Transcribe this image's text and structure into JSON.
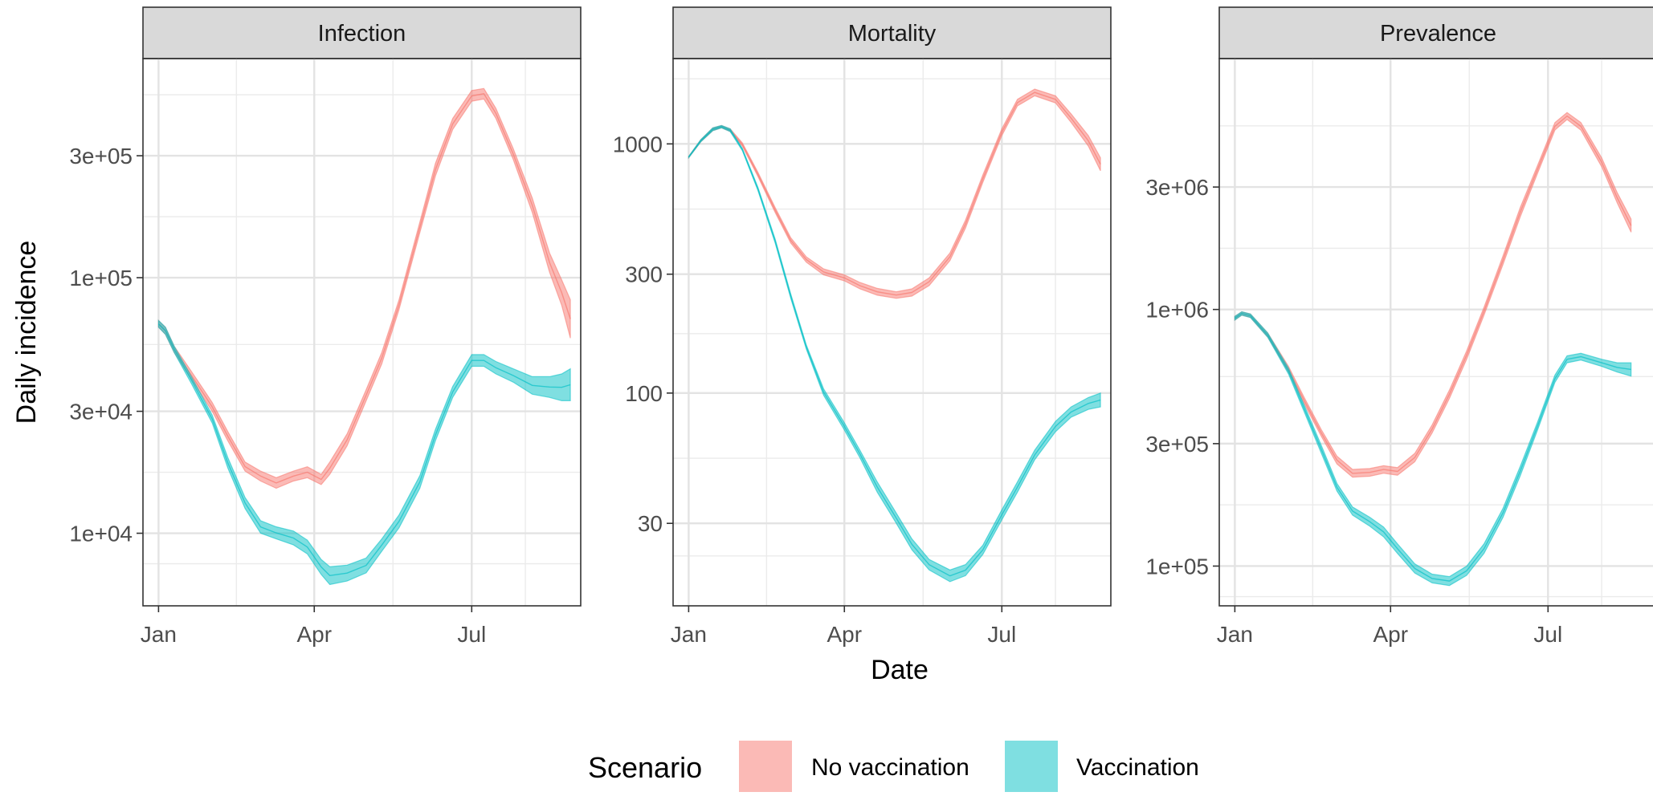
{
  "chart_data": {
    "type": "area",
    "ylabel": "Daily incidence",
    "xlabel": "Date",
    "y_scale": "log10",
    "grid": true,
    "x_ticks": [
      "Jan",
      "Apr",
      "Jul"
    ],
    "legend": {
      "title": "Scenario",
      "position": "bottom",
      "entries": [
        {
          "name": "No vaccination",
          "color": "#F8766D"
        },
        {
          "name": "Vaccination",
          "color": "#00BFC4"
        }
      ]
    },
    "panels": [
      {
        "title": "Infection",
        "ylim": [
          5200,
          720000
        ],
        "y_ticks": [
          10000,
          30000,
          100000,
          300000
        ],
        "y_tick_labels": [
          "1e+04",
          "3e+04",
          "1e+05",
          "3e+05"
        ],
        "series": [
          {
            "name": "No vaccination",
            "points": [
              [
                "2021-01-01",
                64000,
                68000
              ],
              [
                "2021-01-05",
                60000,
                64000
              ],
              [
                "2021-01-10",
                51000,
                54000
              ],
              [
                "2021-01-20",
                40000,
                43000
              ],
              [
                "2021-02-01",
                30000,
                32500
              ],
              [
                "2021-02-10",
                23000,
                25000
              ],
              [
                "2021-02-20",
                17500,
                19000
              ],
              [
                "2021-03-01",
                16000,
                17500
              ],
              [
                "2021-03-10",
                15000,
                16500
              ],
              [
                "2021-03-20",
                16000,
                17500
              ],
              [
                "2021-03-28",
                16500,
                18200
              ],
              [
                "2021-04-05",
                15500,
                17000
              ],
              [
                "2021-04-10",
                17000,
                19000
              ],
              [
                "2021-04-20",
                22000,
                24500
              ],
              [
                "2021-05-01",
                33000,
                36500
              ],
              [
                "2021-05-10",
                46000,
                51000
              ],
              [
                "2021-05-20",
                75000,
                82000
              ],
              [
                "2021-06-01",
                150000,
                165000
              ],
              [
                "2021-06-10",
                250000,
                280000
              ],
              [
                "2021-06-20",
                380000,
                420000
              ],
              [
                "2021-07-01",
                490000,
                540000
              ],
              [
                "2021-07-08",
                500000,
                550000
              ],
              [
                "2021-07-15",
                420000,
                460000
              ],
              [
                "2021-07-25",
                290000,
                320000
              ],
              [
                "2021-08-05",
                180000,
                205000
              ],
              [
                "2021-08-15",
                105000,
                125000
              ],
              [
                "2021-08-22",
                78000,
                98000
              ],
              [
                "2021-08-27",
                58000,
                82000
              ]
            ]
          },
          {
            "name": "Vaccination",
            "points": [
              [
                "2021-01-01",
                64000,
                68000
              ],
              [
                "2021-01-05",
                60000,
                64000
              ],
              [
                "2021-01-10",
                51000,
                54000
              ],
              [
                "2021-01-20",
                38500,
                41000
              ],
              [
                "2021-02-01",
                27000,
                29000
              ],
              [
                "2021-02-10",
                18000,
                19800
              ],
              [
                "2021-02-20",
                12500,
                13800
              ],
              [
                "2021-03-01",
                10000,
                11200
              ],
              [
                "2021-03-10",
                9500,
                10600
              ],
              [
                "2021-03-20",
                9000,
                10200
              ],
              [
                "2021-03-28",
                8300,
                9400
              ],
              [
                "2021-04-05",
                6900,
                7900
              ],
              [
                "2021-04-10",
                6300,
                7400
              ],
              [
                "2021-04-20",
                6500,
                7500
              ],
              [
                "2021-05-01",
                7000,
                8000
              ],
              [
                "2021-05-10",
                8500,
                9500
              ],
              [
                "2021-05-20",
                10500,
                11800
              ],
              [
                "2021-06-01",
                15000,
                16800
              ],
              [
                "2021-06-10",
                23000,
                25500
              ],
              [
                "2021-06-20",
                34000,
                37500
              ],
              [
                "2021-07-01",
                45000,
                50000
              ],
              [
                "2021-07-08",
                45000,
                50000
              ],
              [
                "2021-07-15",
                42000,
                47000
              ],
              [
                "2021-07-25",
                39000,
                44000
              ],
              [
                "2021-08-05",
                35000,
                41000
              ],
              [
                "2021-08-15",
                34000,
                41000
              ],
              [
                "2021-08-22",
                33000,
                42000
              ],
              [
                "2021-08-27",
                33000,
                44000
              ]
            ]
          }
        ]
      },
      {
        "title": "Mortality",
        "ylim": [
          14,
          2200
        ],
        "y_ticks": [
          30,
          100,
          300,
          1000
        ],
        "y_tick_labels": [
          "30",
          "100",
          "300",
          "1000"
        ],
        "series": [
          {
            "name": "No vaccination",
            "points": [
              [
                "2021-01-01",
                880,
                890
              ],
              [
                "2021-01-08",
                1020,
                1040
              ],
              [
                "2021-01-15",
                1130,
                1160
              ],
              [
                "2021-01-20",
                1160,
                1185
              ],
              [
                "2021-01-25",
                1120,
                1150
              ],
              [
                "2021-02-01",
                980,
                1010
              ],
              [
                "2021-02-10",
                740,
                770
              ],
              [
                "2021-02-20",
                530,
                555
              ],
              [
                "2021-03-01",
                400,
                420
              ],
              [
                "2021-03-10",
                335,
                352
              ],
              [
                "2021-03-20",
                298,
                315
              ],
              [
                "2021-04-01",
                282,
                298
              ],
              [
                "2021-04-10",
                262,
                278
              ],
              [
                "2021-04-20",
                247,
                263
              ],
              [
                "2021-05-01",
                240,
                255
              ],
              [
                "2021-05-10",
                245,
                262
              ],
              [
                "2021-05-20",
                270,
                290
              ],
              [
                "2021-06-01",
                340,
                365
              ],
              [
                "2021-06-10",
                460,
                495
              ],
              [
                "2021-06-20",
                700,
                750
              ],
              [
                "2021-07-01",
                1080,
                1150
              ],
              [
                "2021-07-10",
                1420,
                1510
              ],
              [
                "2021-07-20",
                1560,
                1660
              ],
              [
                "2021-08-01",
                1460,
                1560
              ],
              [
                "2021-08-10",
                1220,
                1320
              ],
              [
                "2021-08-20",
                980,
                1080
              ],
              [
                "2021-08-27",
                780,
                880
              ]
            ]
          },
          {
            "name": "Vaccination",
            "points": [
              [
                "2021-01-01",
                880,
                890
              ],
              [
                "2021-01-08",
                1020,
                1040
              ],
              [
                "2021-01-15",
                1130,
                1160
              ],
              [
                "2021-01-20",
                1160,
                1185
              ],
              [
                "2021-01-25",
                1120,
                1150
              ],
              [
                "2021-02-01",
                940,
                960
              ],
              [
                "2021-02-10",
                650,
                670
              ],
              [
                "2021-02-20",
                400,
                415
              ],
              [
                "2021-03-01",
                240,
                250
              ],
              [
                "2021-03-10",
                150,
                156
              ],
              [
                "2021-03-20",
                98,
                104
              ],
              [
                "2021-04-01",
                71,
                76
              ],
              [
                "2021-04-10",
                55,
                59
              ],
              [
                "2021-04-20",
                40,
                44
              ],
              [
                "2021-05-01",
                30,
                33
              ],
              [
                "2021-05-10",
                23.5,
                26
              ],
              [
                "2021-05-20",
                19.5,
                21.5
              ],
              [
                "2021-06-01",
                17.5,
                19.5
              ],
              [
                "2021-06-10",
                18.5,
                20.5
              ],
              [
                "2021-06-20",
                22.5,
                24.5
              ],
              [
                "2021-07-01",
                31,
                34
              ],
              [
                "2021-07-10",
                40,
                44
              ],
              [
                "2021-07-20",
                54,
                59
              ],
              [
                "2021-08-01",
                70,
                77
              ],
              [
                "2021-08-10",
                80,
                88
              ],
              [
                "2021-08-20",
                86,
                96
              ],
              [
                "2021-08-27",
                88,
                100
              ]
            ]
          }
        ]
      },
      {
        "title": "Prevalence",
        "ylim": [
          70000,
          9500000
        ],
        "y_ticks": [
          100000,
          300000,
          1000000,
          3000000
        ],
        "y_tick_labels": [
          "1e+05",
          "3e+05",
          "1e+06",
          "3e+06"
        ],
        "series": [
          {
            "name": "No vaccination",
            "points": [
              [
                "2021-01-01",
                910000,
                940000
              ],
              [
                "2021-01-05",
                950000,
                980000
              ],
              [
                "2021-01-10",
                930000,
                960000
              ],
              [
                "2021-01-20",
                780000,
                810000
              ],
              [
                "2021-02-01",
                570000,
                600000
              ],
              [
                "2021-02-10",
                430000,
                455000
              ],
              [
                "2021-02-20",
                320000,
                340000
              ],
              [
                "2021-03-01",
                250000,
                268000
              ],
              [
                "2021-03-10",
                222000,
                238000
              ],
              [
                "2021-03-20",
                224000,
                240000
              ],
              [
                "2021-03-28",
                230000,
                246000
              ],
              [
                "2021-04-05",
                226000,
                242000
              ],
              [
                "2021-04-15",
                255000,
                275000
              ],
              [
                "2021-04-25",
                330000,
                355000
              ],
              [
                "2021-05-05",
                450000,
                485000
              ],
              [
                "2021-05-15",
                640000,
                690000
              ],
              [
                "2021-05-25",
                950000,
                1020000
              ],
              [
                "2021-06-05",
                1500000,
                1620000
              ],
              [
                "2021-06-15",
                2300000,
                2500000
              ],
              [
                "2021-06-25",
                3400000,
                3650000
              ],
              [
                "2021-07-05",
                5000000,
                5350000
              ],
              [
                "2021-07-12",
                5500000,
                5850000
              ],
              [
                "2021-07-20",
                5000000,
                5350000
              ],
              [
                "2021-08-01",
                3600000,
                3900000
              ],
              [
                "2021-08-10",
                2600000,
                2850000
              ],
              [
                "2021-08-18",
                2000000,
                2250000
              ]
            ]
          },
          {
            "name": "Vaccination",
            "points": [
              [
                "2021-01-01",
                910000,
                940000
              ],
              [
                "2021-01-05",
                950000,
                980000
              ],
              [
                "2021-01-10",
                930000,
                960000
              ],
              [
                "2021-01-20",
                780000,
                810000
              ],
              [
                "2021-02-01",
                560000,
                590000
              ],
              [
                "2021-02-10",
                400000,
                425000
              ],
              [
                "2021-02-20",
                275000,
                295000
              ],
              [
                "2021-03-01",
                196000,
                210000
              ],
              [
                "2021-03-10",
                158000,
                170000
              ],
              [
                "2021-03-20",
                143000,
                155000
              ],
              [
                "2021-03-28",
                130000,
                142000
              ],
              [
                "2021-04-05",
                112000,
                122000
              ],
              [
                "2021-04-15",
                94000,
                102000
              ],
              [
                "2021-04-25",
                86000,
                93000
              ],
              [
                "2021-05-05",
                84000,
                91000
              ],
              [
                "2021-05-15",
                92000,
                100000
              ],
              [
                "2021-05-25",
                112000,
                122000
              ],
              [
                "2021-06-05",
                155000,
                168000
              ],
              [
                "2021-06-15",
                225000,
                245000
              ],
              [
                "2021-06-25",
                340000,
                365000
              ],
              [
                "2021-07-05",
                520000,
                555000
              ],
              [
                "2021-07-12",
                620000,
                660000
              ],
              [
                "2021-07-20",
                635000,
                675000
              ],
              [
                "2021-08-01",
                600000,
                640000
              ],
              [
                "2021-08-10",
                570000,
                620000
              ],
              [
                "2021-08-18",
                550000,
                620000
              ]
            ]
          }
        ]
      }
    ]
  }
}
